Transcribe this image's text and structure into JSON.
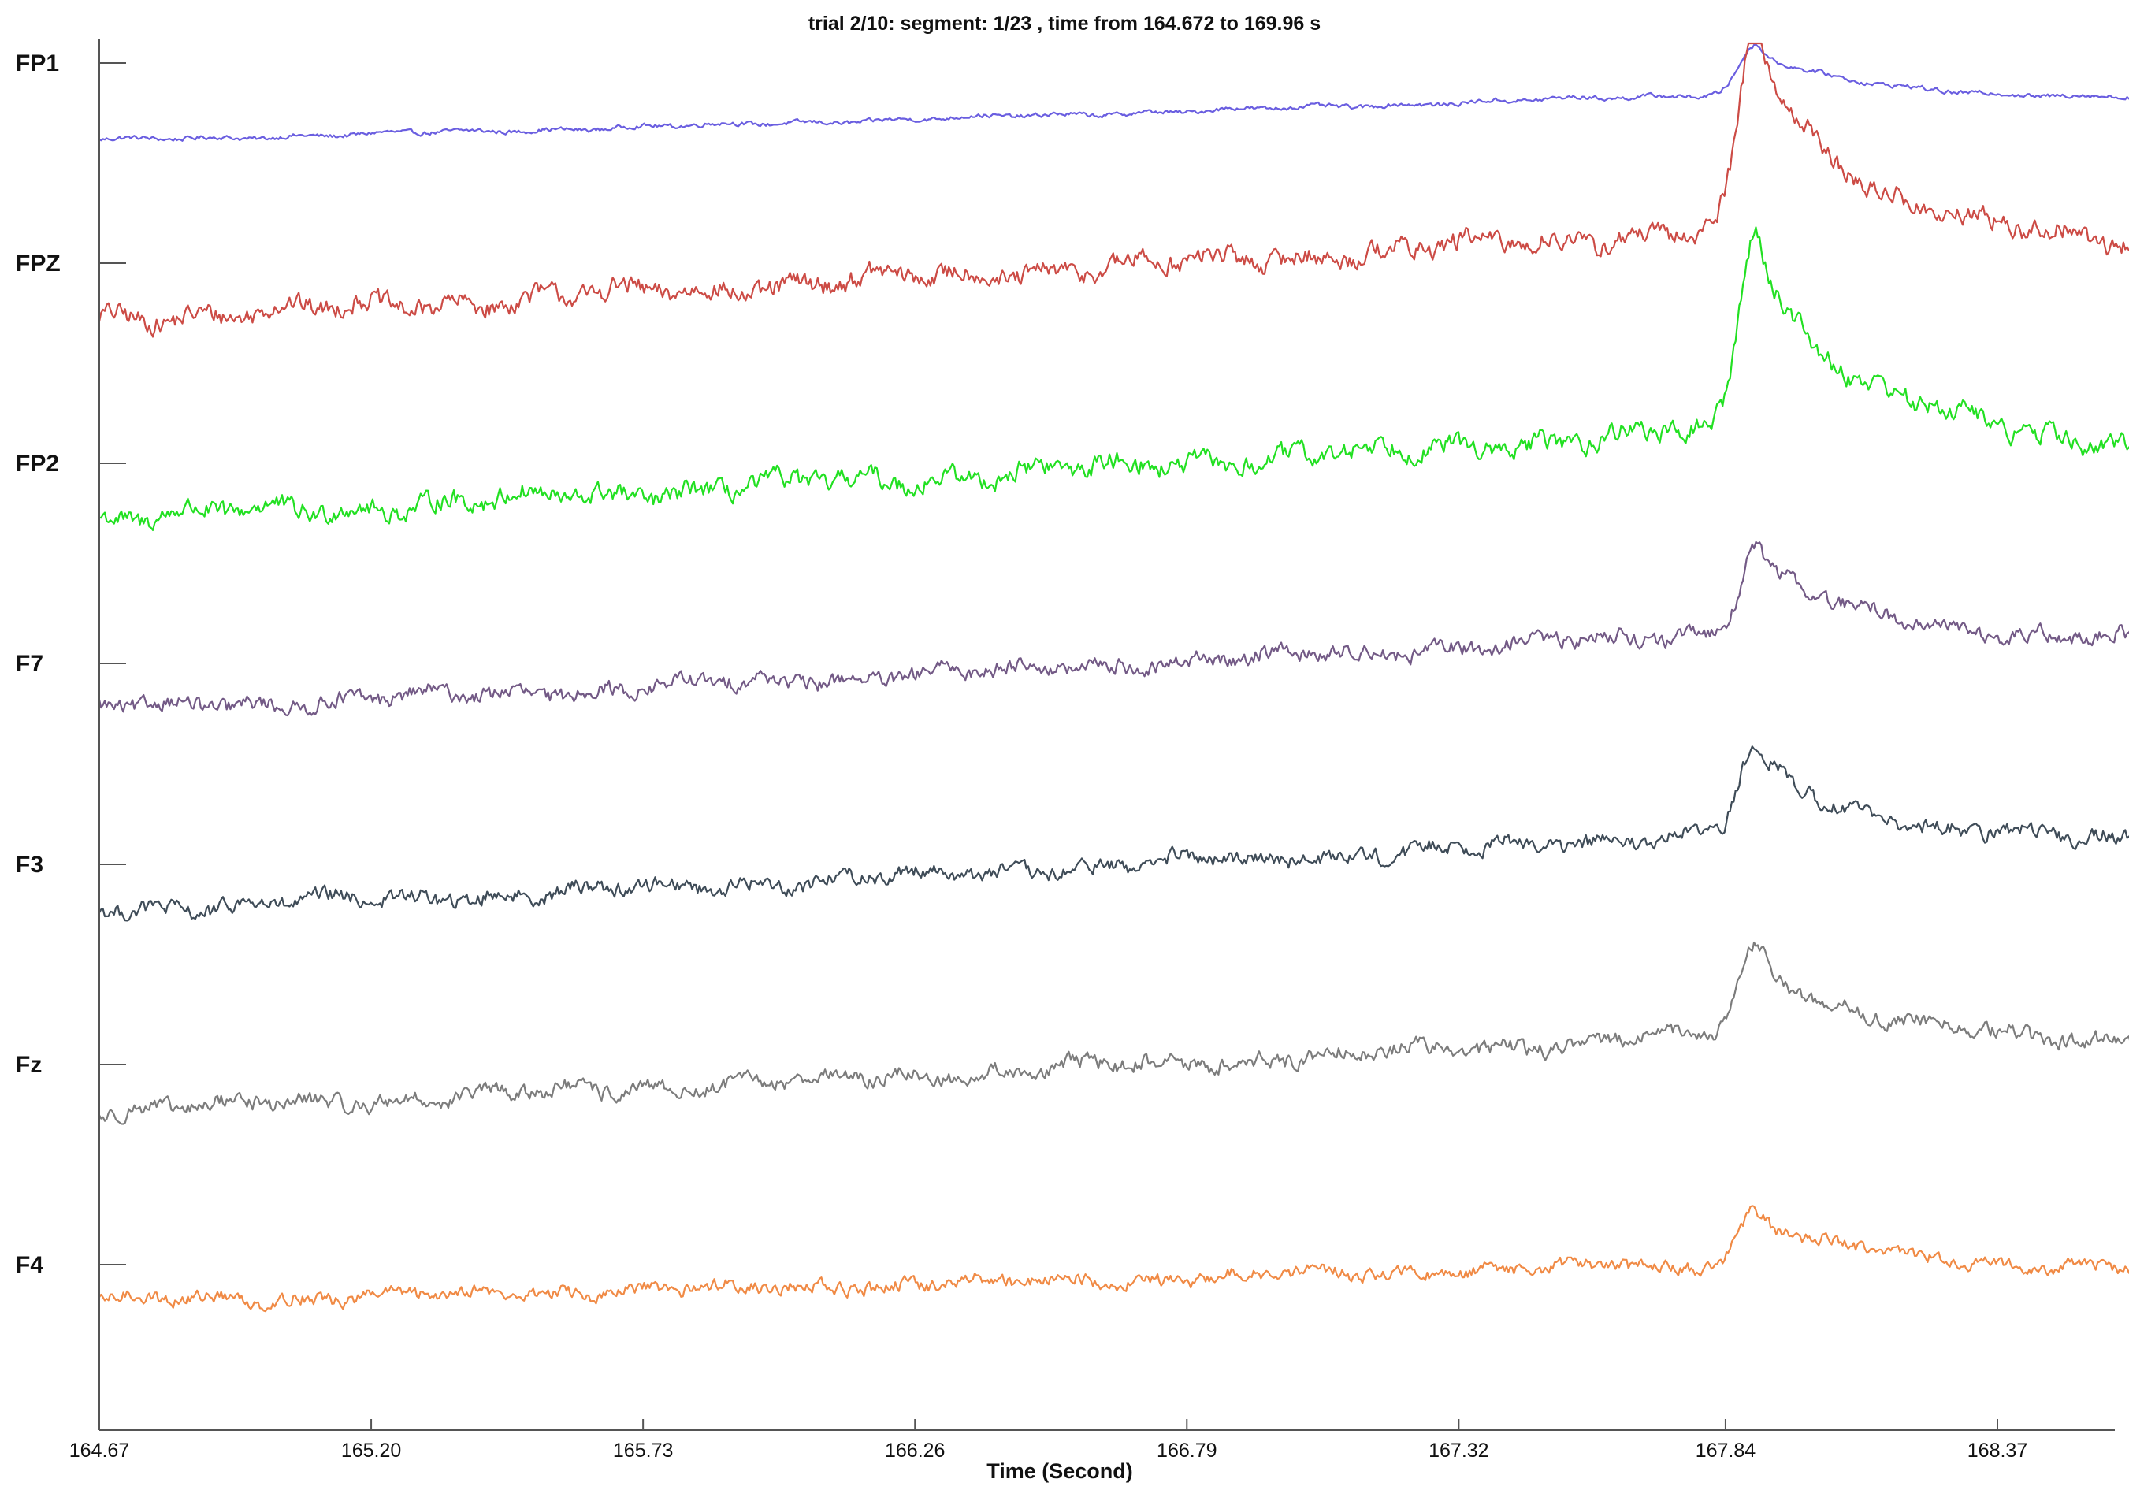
{
  "chart_data": {
    "type": "line",
    "title": "trial 2/10: segment: 1/23 , time from 164.672 to 169.96 s",
    "xlabel": "Time (Second)",
    "xlim": [
      164.67,
      168.63
    ],
    "x_ticks": [
      "164.67",
      "165.20",
      "165.73",
      "166.26",
      "166.79",
      "167.32",
      "167.84",
      "168.37"
    ],
    "x_tick_values": [
      164.67,
      165.2,
      165.73,
      166.26,
      166.79,
      167.32,
      167.84,
      168.37
    ],
    "channels": [
      "FP1",
      "FPZ",
      "FP2",
      "F7",
      "F3",
      "Fz",
      "F4"
    ],
    "peak_time": 167.9,
    "series": [
      {
        "name": "FP1",
        "color": "#6a5ee0",
        "start": -0.85,
        "end": -0.35,
        "peak": 0.55,
        "noise": 0.02
      },
      {
        "name": "FPZ",
        "color": "#cc4b45",
        "start": -0.6,
        "end": 0.35,
        "peak": 2.3,
        "noise": 0.09
      },
      {
        "name": "FP2",
        "color": "#22e022",
        "start": -0.6,
        "end": 0.35,
        "peak": 2.3,
        "noise": 0.09
      },
      {
        "name": "F7",
        "color": "#735a86",
        "start": -0.5,
        "end": 0.32,
        "peak": 1.0,
        "noise": 0.07
      },
      {
        "name": "F3",
        "color": "#3f4c58",
        "start": -0.5,
        "end": 0.32,
        "peak": 1.0,
        "noise": 0.07
      },
      {
        "name": "Fz",
        "color": "#7c7c7c",
        "start": -0.5,
        "end": 0.32,
        "peak": 1.0,
        "noise": 0.07
      },
      {
        "name": "F4",
        "color": "#f08a45",
        "start": -0.4,
        "end": 0.0,
        "peak": 0.6,
        "noise": 0.06
      }
    ]
  }
}
